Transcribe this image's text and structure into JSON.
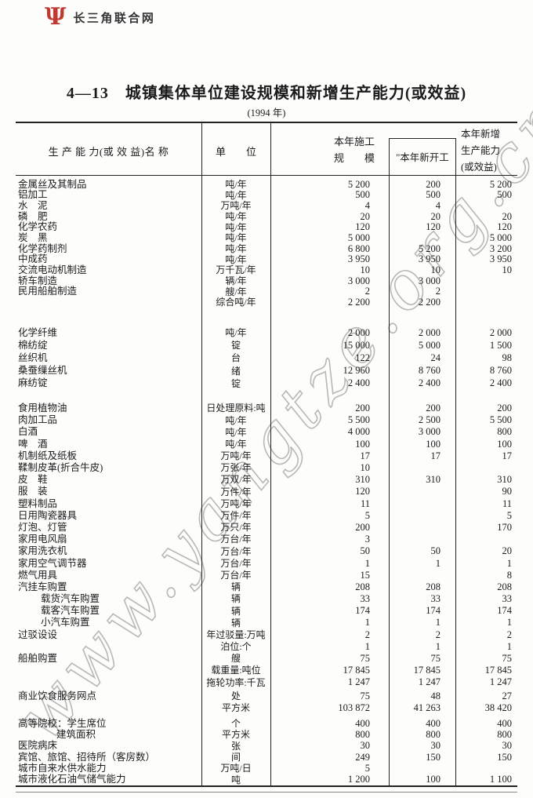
{
  "brand": {
    "site_name": "长三角联合网",
    "logo_glyph": "Ψ",
    "logo_color": "#c03a32"
  },
  "title": "4—13　城镇集体单位建设规模和新增生产能力(或效益)",
  "subtitle": "(1994 年)",
  "watermark": "www.yangtze.org.cn",
  "table": {
    "headers": {
      "name": "生 产 能 力(或 效 益)名 称",
      "unit": "单　　位",
      "col3_line1": "本年施工",
      "col3_line2": "规　　模",
      "col4": "\"本年新开工",
      "col5_line1": "本年新增",
      "col5_line2": "生产能力",
      "col5_line3": "(或效益)"
    },
    "rows": [
      {
        "sec": 1,
        "indent": 0,
        "name": "金属丝及其制品",
        "unit": "吨/年",
        "c3": "5 200",
        "c4": "200",
        "c5": "5 200"
      },
      {
        "sec": 1,
        "indent": 0,
        "name": "铝加工",
        "unit": "吨/年",
        "c3": "500",
        "c4": "500",
        "c5": "500"
      },
      {
        "sec": 1,
        "indent": 0,
        "name": "水　泥",
        "unit": "万吨/年",
        "c3": "4",
        "c4": "4",
        "c5": ""
      },
      {
        "sec": 1,
        "indent": 0,
        "name": "磷　肥",
        "unit": "吨/年",
        "c3": "20",
        "c4": "20",
        "c5": "20"
      },
      {
        "sec": 1,
        "indent": 0,
        "name": "化学农药",
        "unit": "吨/年",
        "c3": "120",
        "c4": "120",
        "c5": "120"
      },
      {
        "sec": 1,
        "indent": 0,
        "name": "炭　黑",
        "unit": "吨/年",
        "c3": "5 000",
        "c4": "",
        "c5": "5 000"
      },
      {
        "sec": 1,
        "indent": 0,
        "name": "化学药制剂",
        "unit": "吨/年",
        "c3": "6 800",
        "c4": "5 200",
        "c5": "3 200"
      },
      {
        "sec": 1,
        "indent": 0,
        "name": "中成药",
        "unit": "吨/年",
        "c3": "3 950",
        "c4": "3 950",
        "c5": "3 950"
      },
      {
        "sec": 1,
        "indent": 0,
        "name": "交流电动机制造",
        "unit": "万千瓦/年",
        "c3": "10",
        "c4": "10",
        "c5": "10"
      },
      {
        "sec": 1,
        "indent": 0,
        "name": "轿车制造",
        "unit": "辆/年",
        "c3": "3 000",
        "c4": "3 000",
        "c5": ""
      },
      {
        "sec": 1,
        "indent": 0,
        "name": "民用船舶制造",
        "unit": "艘/年",
        "c3": "2",
        "c4": "2",
        "c5": ""
      },
      {
        "sec": 1,
        "indent": 0,
        "name": "",
        "unit": "综合吨/年",
        "c3": "2 200",
        "c4": "2 200",
        "c5": ""
      },
      {
        "sec": 2,
        "indent": 0,
        "name": "化学纤维",
        "unit": "吨/年",
        "c3": "2 000",
        "c4": "2 000",
        "c5": "2 000"
      },
      {
        "sec": 2,
        "indent": 0,
        "name": "棉纺绽",
        "unit": "锭",
        "c3": "15 000",
        "c4": "5 000",
        "c5": "1 500"
      },
      {
        "sec": 2,
        "indent": 0,
        "name": "丝织机",
        "unit": "台",
        "c3": "122",
        "c4": "24",
        "c5": "98"
      },
      {
        "sec": 2,
        "indent": 0,
        "name": "桑蚕缫丝机",
        "unit": "绪",
        "c3": "12 960",
        "c4": "8 760",
        "c5": "8 760"
      },
      {
        "sec": 2,
        "indent": 0,
        "name": "麻纺锭",
        "unit": "锭",
        "c3": "2 400",
        "c4": "2 400",
        "c5": "2 400"
      },
      {
        "sec": 3,
        "indent": 0,
        "name": "食用植物油",
        "unit": "日处理原料:吨",
        "c3": "200",
        "c4": "200",
        "c5": "200"
      },
      {
        "sec": 3,
        "indent": 0,
        "name": "肉加工品",
        "unit": "吨/年",
        "c3": "5 500",
        "c4": "2 500",
        "c5": "5 500"
      },
      {
        "sec": 3,
        "indent": 0,
        "name": "白酒",
        "unit": "吨/年",
        "c3": "4 000",
        "c4": "3 000",
        "c5": "800"
      },
      {
        "sec": 3,
        "indent": 0,
        "name": "啤　酒",
        "unit": "吨/年",
        "c3": "100",
        "c4": "100",
        "c5": "100"
      },
      {
        "sec": 3,
        "indent": 0,
        "name": "机制纸及纸板",
        "unit": "万吨/年",
        "c3": "17",
        "c4": "17",
        "c5": "17"
      },
      {
        "sec": 3,
        "indent": 0,
        "name": "鞣制皮革(折合牛皮)",
        "unit": "万张/年",
        "c3": "10",
        "c4": "",
        "c5": ""
      },
      {
        "sec": 3,
        "indent": 0,
        "name": "皮　鞋",
        "unit": "万双/年",
        "c3": "310",
        "c4": "310",
        "c5": "310"
      },
      {
        "sec": 3,
        "indent": 0,
        "name": "服　装",
        "unit": "万件/年",
        "c3": "120",
        "c4": "",
        "c5": "90"
      },
      {
        "sec": 3,
        "indent": 0,
        "name": "塑料制品",
        "unit": "万吨/年",
        "c3": "11",
        "c4": "",
        "c5": "11"
      },
      {
        "sec": 3,
        "indent": 0,
        "name": "日用陶瓷器具",
        "unit": "万件/年",
        "c3": "5",
        "c4": "",
        "c5": "5"
      },
      {
        "sec": 3,
        "indent": 0,
        "name": "灯泡、灯管",
        "unit": "万只/年",
        "c3": "200",
        "c4": "",
        "c5": "170"
      },
      {
        "sec": 3,
        "indent": 0,
        "name": "家用电风扇",
        "unit": "万台/年",
        "c3": "3",
        "c4": "",
        "c5": ""
      },
      {
        "sec": 3,
        "indent": 0,
        "name": "家用洗衣机",
        "unit": "万台/年",
        "c3": "50",
        "c4": "50",
        "c5": "20"
      },
      {
        "sec": 3,
        "indent": 0,
        "name": "家用空气调节器",
        "unit": "万台/年",
        "c3": "1",
        "c4": "1",
        "c5": "1"
      },
      {
        "sec": 3,
        "indent": 0,
        "name": "燃气用具",
        "unit": "万台/年",
        "c3": "15",
        "c4": "",
        "c5": "8"
      },
      {
        "sec": 3,
        "indent": 0,
        "name": "汽挂车购置",
        "unit": "辆",
        "c3": "208",
        "c4": "208",
        "c5": "208"
      },
      {
        "sec": 3,
        "indent": 1,
        "name": "载货汽车购置",
        "unit": "辆",
        "c3": "33",
        "c4": "33",
        "c5": "33"
      },
      {
        "sec": 3,
        "indent": 1,
        "name": "载客汽车购置",
        "unit": "辆",
        "c3": "174",
        "c4": "174",
        "c5": "174"
      },
      {
        "sec": 3,
        "indent": 1,
        "name": "小汽车购置",
        "unit": "辆",
        "c3": "1",
        "c4": "1",
        "c5": "1"
      },
      {
        "sec": 3,
        "indent": 0,
        "name": "过驳设设",
        "unit": "年过驳量:万吨",
        "c3": "2",
        "c4": "2",
        "c5": "2"
      },
      {
        "sec": 3,
        "indent": 0,
        "name": "",
        "unit": "泊位:个",
        "c3": "1",
        "c4": "1",
        "c5": "1"
      },
      {
        "sec": 3,
        "indent": 0,
        "name": "船舶购置",
        "unit": "艘",
        "c3": "75",
        "c4": "75",
        "c5": "75"
      },
      {
        "sec": 3,
        "indent": 0,
        "name": "",
        "unit": "载重量:吨位",
        "c3": "17 845",
        "c4": "17 845",
        "c5": "17 845"
      },
      {
        "sec": 3,
        "indent": 0,
        "name": "",
        "unit": "拖轮功率:千瓦",
        "c3": "1 247",
        "c4": "1 247",
        "c5": "1 247"
      },
      {
        "sec": 4,
        "indent": 0,
        "name": "商业饮食服务网点",
        "unit": "处",
        "c3": "75",
        "c4": "48",
        "c5": "27"
      },
      {
        "sec": 4,
        "indent": 0,
        "name": "",
        "unit": "平方米",
        "c3": "103 872",
        "c4": "41 263",
        "c5": "38 420"
      },
      {
        "sec": 5,
        "indent": 0,
        "name": "高等院校：学生席位",
        "unit": "个",
        "c3": "400",
        "c4": "400",
        "c5": "400"
      },
      {
        "sec": 5,
        "indent": 2,
        "name": "建筑面积",
        "unit": "平方米",
        "c3": "800",
        "c4": "800",
        "c5": "800"
      },
      {
        "sec": 5,
        "indent": 0,
        "name": "医院病床",
        "unit": "张",
        "c3": "30",
        "c4": "30",
        "c5": "30"
      },
      {
        "sec": 5,
        "indent": 0,
        "name": "宾馆、旅馆、招待所（客房数）",
        "unit": "间",
        "c3": "249",
        "c4": "150",
        "c5": "150"
      },
      {
        "sec": 5,
        "indent": 0,
        "name": "城市自来水供水能力",
        "unit": "万吨/日",
        "c3": "5",
        "c4": "",
        "c5": ""
      },
      {
        "sec": 5,
        "indent": 0,
        "name": "城市液化石油气储气能力",
        "unit": "吨",
        "c3": "1 200",
        "c4": "100",
        "c5": "1 100"
      }
    ]
  }
}
